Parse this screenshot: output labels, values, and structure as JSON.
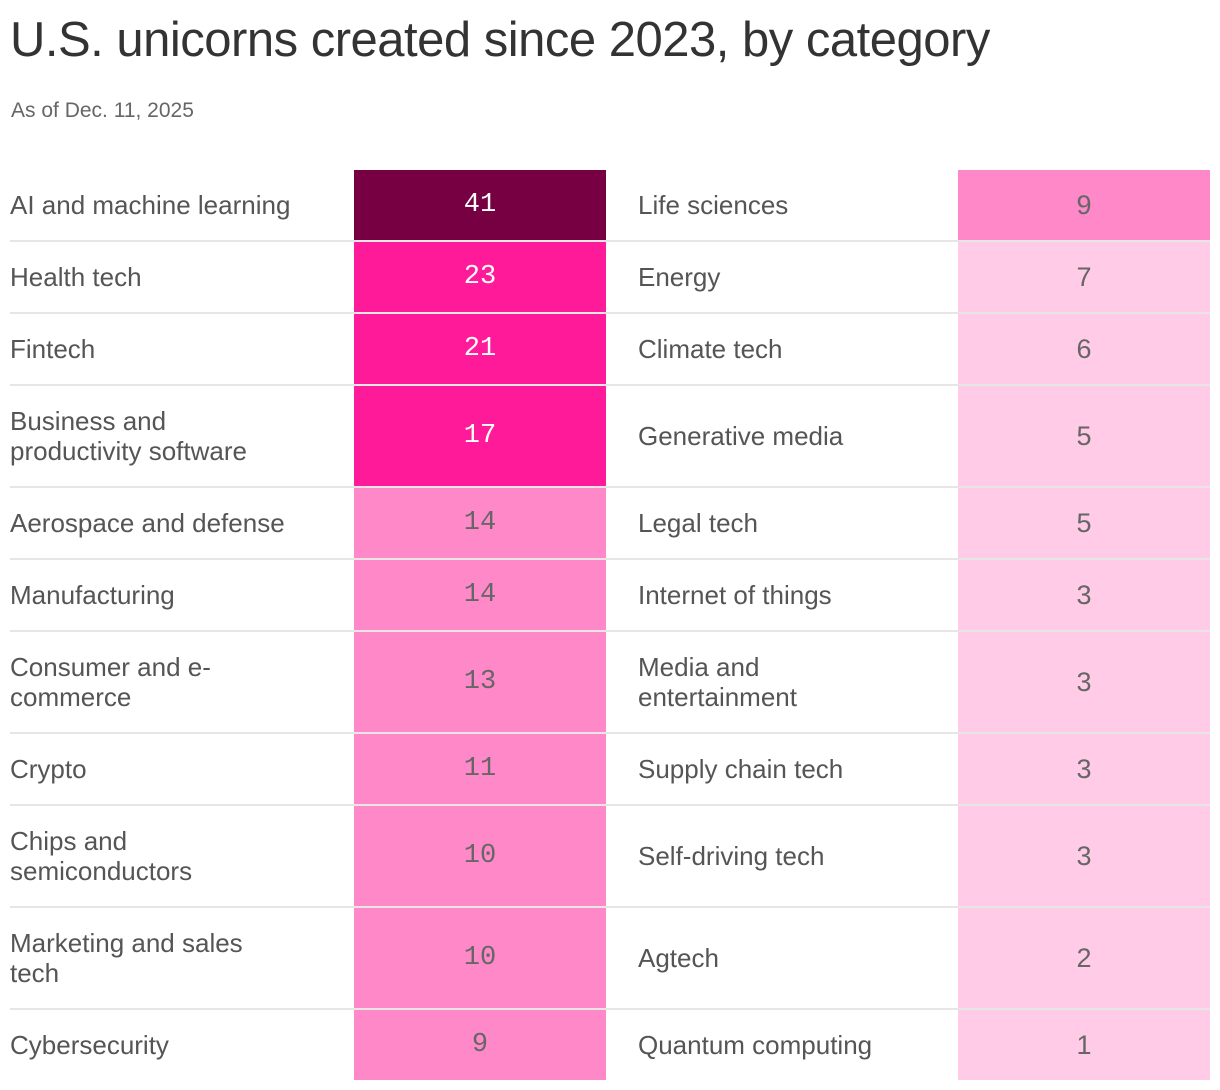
{
  "title": "U.S. unicorns created since 2023, by category",
  "subtitle": "As of Dec. 11, 2025",
  "colors": {
    "dark": "#770042",
    "hot": "#ff1a9a",
    "mid": "#ff88c8",
    "light": "#ffcbe6"
  },
  "chart_data": {
    "type": "table",
    "title": "U.S. unicorns created since 2023, by category",
    "subtitle": "As of Dec. 11, 2025",
    "left": [
      {
        "category": "AI and machine learning",
        "value": 41,
        "tier": "dark"
      },
      {
        "category": "Health tech",
        "value": 23,
        "tier": "hot"
      },
      {
        "category": "Fintech",
        "value": 21,
        "tier": "hot"
      },
      {
        "category": "Business and productivity software",
        "value": 17,
        "tier": "hot"
      },
      {
        "category": "Aerospace and defense",
        "value": 14,
        "tier": "mid"
      },
      {
        "category": "Manufacturing",
        "value": 14,
        "tier": "mid"
      },
      {
        "category": "Consumer and e-commerce",
        "value": 13,
        "tier": "mid"
      },
      {
        "category": "Crypto",
        "value": 11,
        "tier": "mid"
      },
      {
        "category": "Chips and semiconductors",
        "value": 10,
        "tier": "mid"
      },
      {
        "category": "Marketing and sales tech",
        "value": 10,
        "tier": "mid"
      },
      {
        "category": "Cybersecurity",
        "value": 9,
        "tier": "mid"
      }
    ],
    "right": [
      {
        "category": "Life sciences",
        "value": 9,
        "tier": "mid"
      },
      {
        "category": "Energy",
        "value": 7,
        "tier": "light"
      },
      {
        "category": "Climate tech",
        "value": 6,
        "tier": "light"
      },
      {
        "category": "Generative media",
        "value": 5,
        "tier": "light"
      },
      {
        "category": "Legal tech",
        "value": 5,
        "tier": "light"
      },
      {
        "category": "Internet of things",
        "value": 3,
        "tier": "light"
      },
      {
        "category": "Media and entertainment",
        "value": 3,
        "tier": "light"
      },
      {
        "category": "Supply chain tech",
        "value": 3,
        "tier": "light"
      },
      {
        "category": "Self-driving tech",
        "value": 3,
        "tier": "light"
      },
      {
        "category": "Agtech",
        "value": 2,
        "tier": "light"
      },
      {
        "category": "Quantum computing",
        "value": 1,
        "tier": "light"
      }
    ]
  }
}
